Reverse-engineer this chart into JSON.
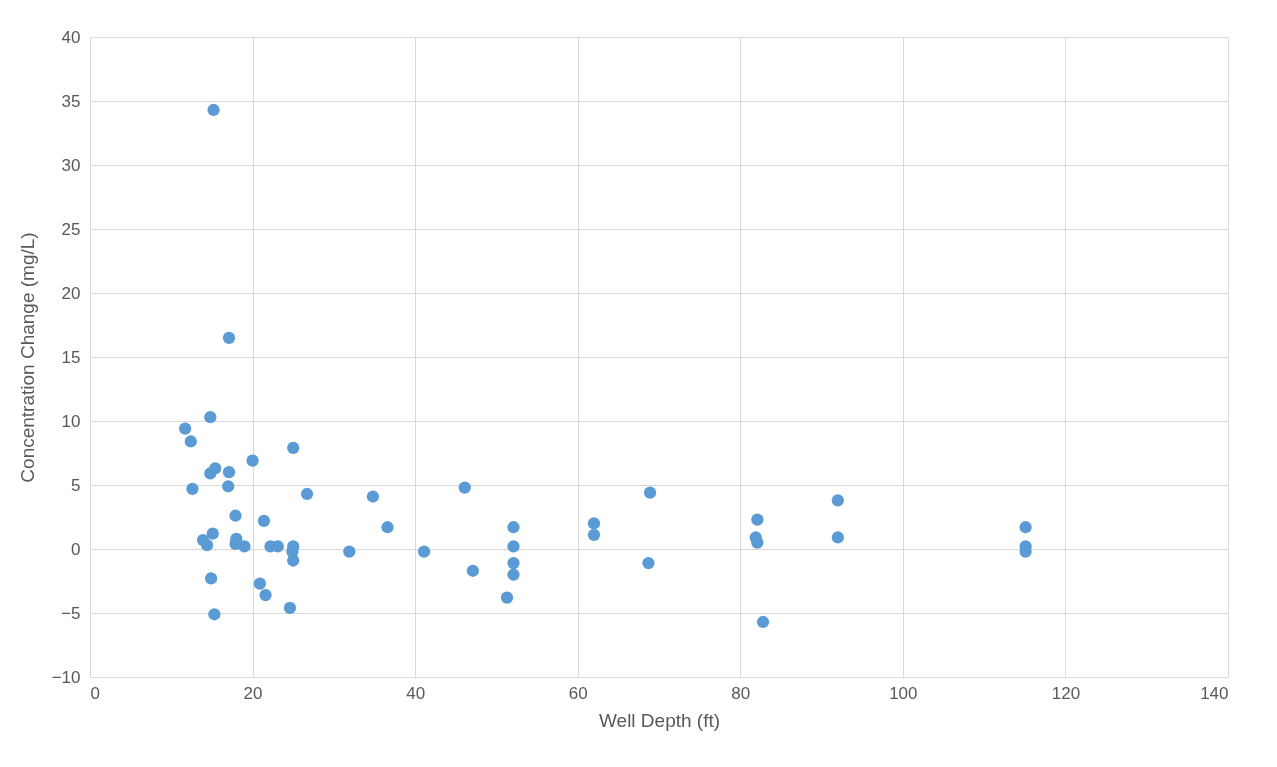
{
  "chart_data": {
    "type": "scatter",
    "xlabel": "Well Depth (ft)",
    "ylabel": "Concentration Change (mg/L)",
    "x": [
      15.2,
      17.1,
      11.7,
      14.8,
      12.4,
      25.0,
      15.4,
      20.0,
      14.8,
      17.1,
      12.6,
      17.0,
      26.7,
      34.8,
      46.1,
      68.9,
      92.0,
      82.1,
      62.0,
      17.9,
      21.4,
      36.6,
      52.1,
      115.1,
      62.0,
      81.9,
      92.0,
      82.1,
      15.1,
      13.9,
      14.4,
      18.0,
      17.9,
      19.0,
      22.2,
      23.1,
      25.0,
      24.9,
      52.1,
      115.1,
      115.1,
      31.9,
      41.1,
      25.0,
      52.1,
      68.7,
      47.1,
      52.1,
      14.9,
      20.9,
      21.6,
      51.3,
      24.6,
      15.3,
      82.8
    ],
    "series": [
      {
        "color": "#5b9bd5",
        "values": [
          34.3,
          16.5,
          9.4,
          10.3,
          8.4,
          7.9,
          6.3,
          6.9,
          5.9,
          6.0,
          4.7,
          4.9,
          4.3,
          4.1,
          4.8,
          4.4,
          3.8,
          2.3,
          2.0,
          2.6,
          2.2,
          1.7,
          1.7,
          1.7,
          1.1,
          0.9,
          0.9,
          0.5,
          1.2,
          0.7,
          0.3,
          0.8,
          0.4,
          0.2,
          0.2,
          0.2,
          0.2,
          -0.2,
          0.2,
          0.2,
          -0.2,
          -0.2,
          -0.2,
          -0.9,
          -1.1,
          -1.1,
          -1.7,
          -2.0,
          -2.3,
          -2.7,
          -3.6,
          -3.8,
          -4.6,
          -5.1,
          -5.7
        ]
      }
    ],
    "xlim": [
      0,
      140
    ],
    "xticks": [
      0,
      20,
      40,
      60,
      80,
      100,
      120,
      140
    ],
    "ylim": [
      -10,
      40
    ],
    "yticks": [
      -10,
      -5,
      0,
      5,
      10,
      15,
      20,
      25,
      30,
      35,
      40
    ],
    "grid": true,
    "marker": "circle"
  }
}
